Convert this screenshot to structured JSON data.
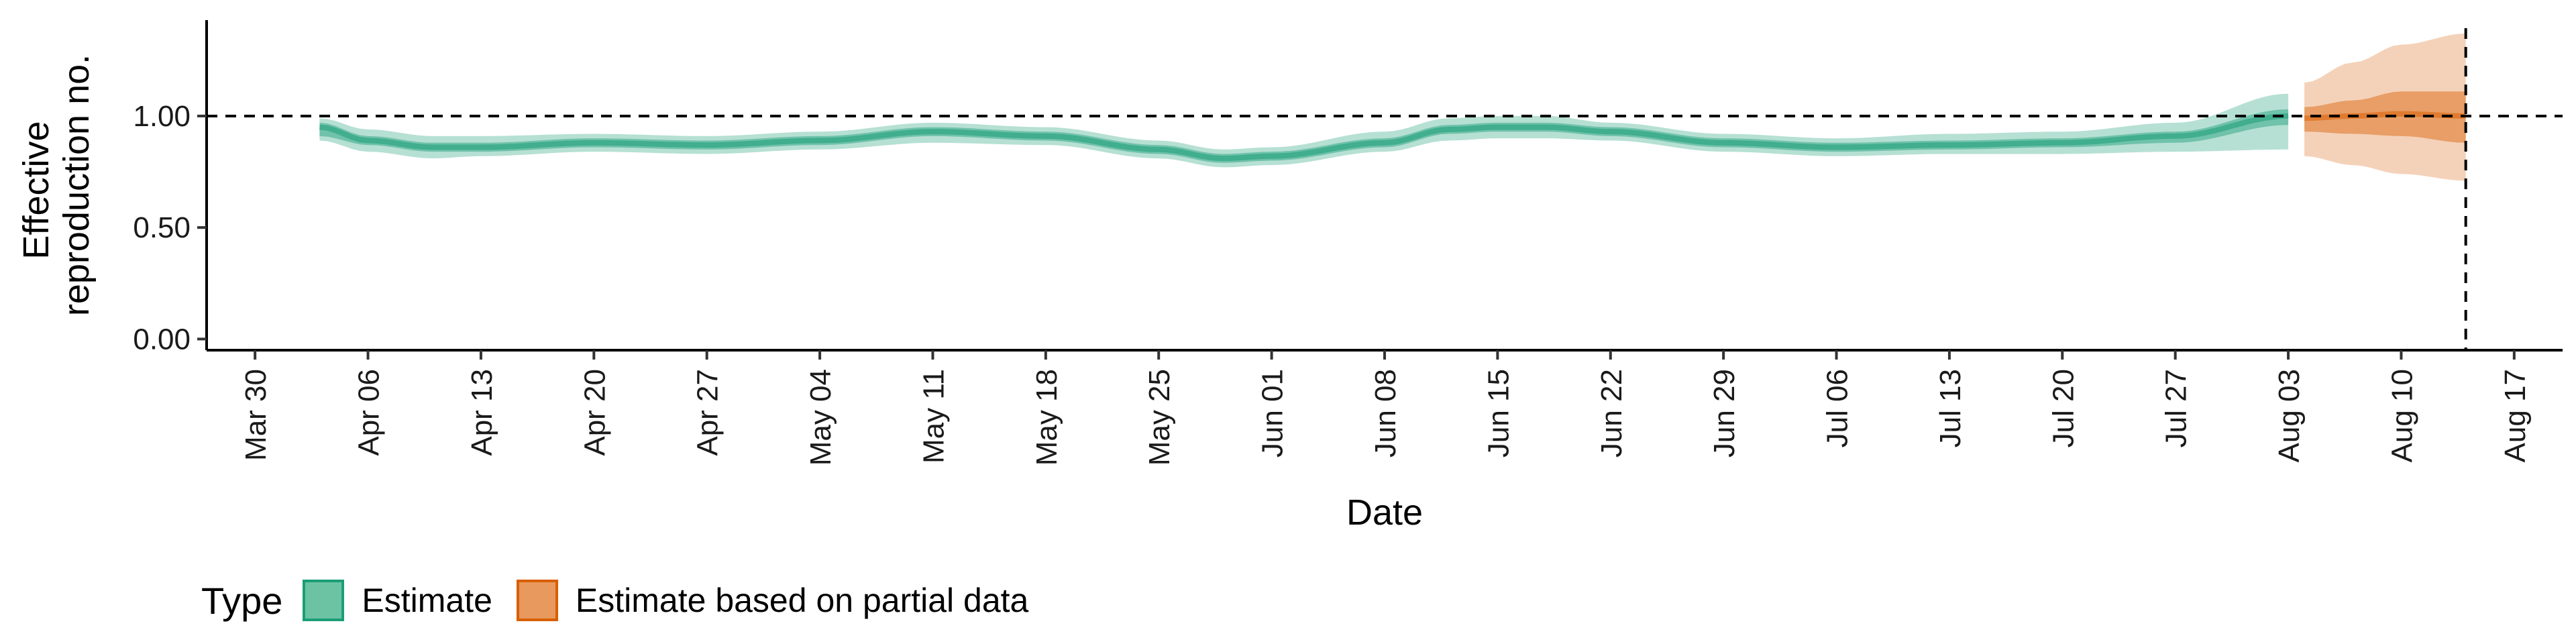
{
  "chart_data": {
    "type": "area",
    "xlabel": "Date",
    "ylabel": [
      "Effective",
      "reproduction no."
    ],
    "x_ticks": [
      "2020-03-30",
      "2020-04-06",
      "2020-04-13",
      "2020-04-20",
      "2020-04-27",
      "2020-05-04",
      "2020-05-11",
      "2020-05-18",
      "2020-05-25",
      "2020-06-01",
      "2020-06-08",
      "2020-06-15",
      "2020-06-22",
      "2020-06-29",
      "2020-07-06",
      "2020-07-13",
      "2020-07-20",
      "2020-07-27",
      "2020-08-03",
      "2020-08-10",
      "2020-08-17"
    ],
    "x_tick_labels": [
      "Mar 30",
      "Apr 06",
      "Apr 13",
      "Apr 20",
      "Apr 27",
      "May 04",
      "May 11",
      "May 18",
      "May 25",
      "Jun 01",
      "Jun 08",
      "Jun 15",
      "Jun 22",
      "Jun 29",
      "Jul 06",
      "Jul 13",
      "Jul 20",
      "Jul 27",
      "Aug 03",
      "Aug 10",
      "Aug 17"
    ],
    "xlim": [
      "2020-03-27",
      "2020-08-20"
    ],
    "y_ticks": [
      0,
      0.5,
      1.0
    ],
    "y_tick_labels": [
      "0.00",
      "0.50",
      "1.00"
    ],
    "ylim": [
      -0.05,
      1.43
    ],
    "reference_lines": {
      "horizontal_y": 1.0,
      "vertical_x": "2020-08-14"
    },
    "grid": false,
    "legend": {
      "title": "Type",
      "placement": "bottom-left",
      "entries": [
        {
          "label": "Estimate",
          "fill": "#6cc3a4",
          "border": "#1b9e77"
        },
        {
          "label": "Estimate based on partial data",
          "fill": "#e8995d",
          "border": "#d95f02"
        }
      ]
    },
    "series": [
      {
        "name": "Estimate",
        "color": "#1b9e77",
        "points": [
          {
            "x": "2020-04-03",
            "median": 0.95,
            "lo50": 0.91,
            "hi50": 0.97,
            "lo90": 0.89,
            "hi90": 0.99
          },
          {
            "x": "2020-04-06",
            "median": 0.89,
            "lo50": 0.87,
            "hi50": 0.91,
            "lo90": 0.84,
            "hi90": 0.94
          },
          {
            "x": "2020-04-10",
            "median": 0.86,
            "lo50": 0.84,
            "hi50": 0.88,
            "lo90": 0.81,
            "hi90": 0.91
          },
          {
            "x": "2020-04-13",
            "median": 0.86,
            "lo50": 0.84,
            "hi50": 0.88,
            "lo90": 0.82,
            "hi90": 0.91
          },
          {
            "x": "2020-04-20",
            "median": 0.88,
            "lo50": 0.86,
            "hi50": 0.9,
            "lo90": 0.84,
            "hi90": 0.92
          },
          {
            "x": "2020-04-27",
            "median": 0.87,
            "lo50": 0.85,
            "hi50": 0.89,
            "lo90": 0.83,
            "hi90": 0.91
          },
          {
            "x": "2020-05-04",
            "median": 0.89,
            "lo50": 0.87,
            "hi50": 0.91,
            "lo90": 0.85,
            "hi90": 0.93
          },
          {
            "x": "2020-05-11",
            "median": 0.93,
            "lo50": 0.91,
            "hi50": 0.95,
            "lo90": 0.88,
            "hi90": 0.97
          },
          {
            "x": "2020-05-18",
            "median": 0.91,
            "lo50": 0.89,
            "hi50": 0.93,
            "lo90": 0.87,
            "hi90": 0.95
          },
          {
            "x": "2020-05-25",
            "median": 0.85,
            "lo50": 0.83,
            "hi50": 0.87,
            "lo90": 0.81,
            "hi90": 0.89
          },
          {
            "x": "2020-05-29",
            "median": 0.81,
            "lo50": 0.79,
            "hi50": 0.83,
            "lo90": 0.77,
            "hi90": 0.85
          },
          {
            "x": "2020-06-01",
            "median": 0.82,
            "lo50": 0.8,
            "hi50": 0.84,
            "lo90": 0.78,
            "hi90": 0.86
          },
          {
            "x": "2020-06-08",
            "median": 0.88,
            "lo50": 0.86,
            "hi50": 0.9,
            "lo90": 0.84,
            "hi90": 0.93
          },
          {
            "x": "2020-06-12",
            "median": 0.94,
            "lo50": 0.92,
            "hi50": 0.96,
            "lo90": 0.89,
            "hi90": 0.99
          },
          {
            "x": "2020-06-15",
            "median": 0.95,
            "lo50": 0.93,
            "hi50": 0.97,
            "lo90": 0.9,
            "hi90": 1.0
          },
          {
            "x": "2020-06-18",
            "median": 0.95,
            "lo50": 0.93,
            "hi50": 0.97,
            "lo90": 0.9,
            "hi90": 1.0
          },
          {
            "x": "2020-06-22",
            "median": 0.93,
            "lo50": 0.91,
            "hi50": 0.95,
            "lo90": 0.89,
            "hi90": 0.97
          },
          {
            "x": "2020-06-29",
            "median": 0.88,
            "lo50": 0.86,
            "hi50": 0.9,
            "lo90": 0.84,
            "hi90": 0.92
          },
          {
            "x": "2020-07-06",
            "median": 0.86,
            "lo50": 0.84,
            "hi50": 0.88,
            "lo90": 0.82,
            "hi90": 0.9
          },
          {
            "x": "2020-07-13",
            "median": 0.87,
            "lo50": 0.85,
            "hi50": 0.89,
            "lo90": 0.83,
            "hi90": 0.92
          },
          {
            "x": "2020-07-20",
            "median": 0.88,
            "lo50": 0.86,
            "hi50": 0.9,
            "lo90": 0.83,
            "hi90": 0.93
          },
          {
            "x": "2020-07-27",
            "median": 0.91,
            "lo50": 0.88,
            "hi50": 0.93,
            "lo90": 0.84,
            "hi90": 0.97
          },
          {
            "x": "2020-08-03",
            "median": 1.0,
            "lo50": 0.96,
            "hi50": 1.03,
            "lo90": 0.85,
            "hi90": 1.1
          }
        ]
      },
      {
        "name": "Estimate based on partial data",
        "color": "#d95f02",
        "points": [
          {
            "x": "2020-08-04",
            "median": 0.99,
            "lo50": 0.93,
            "hi50": 1.04,
            "lo90": 0.82,
            "hi90": 1.15
          },
          {
            "x": "2020-08-07",
            "median": 1.0,
            "lo50": 0.92,
            "hi50": 1.07,
            "lo90": 0.78,
            "hi90": 1.24
          },
          {
            "x": "2020-08-10",
            "median": 1.01,
            "lo50": 0.91,
            "hi50": 1.11,
            "lo90": 0.74,
            "hi90": 1.32
          },
          {
            "x": "2020-08-14",
            "median": 1.0,
            "lo50": 0.88,
            "hi50": 1.11,
            "lo90": 0.71,
            "hi90": 1.37
          }
        ]
      }
    ]
  }
}
